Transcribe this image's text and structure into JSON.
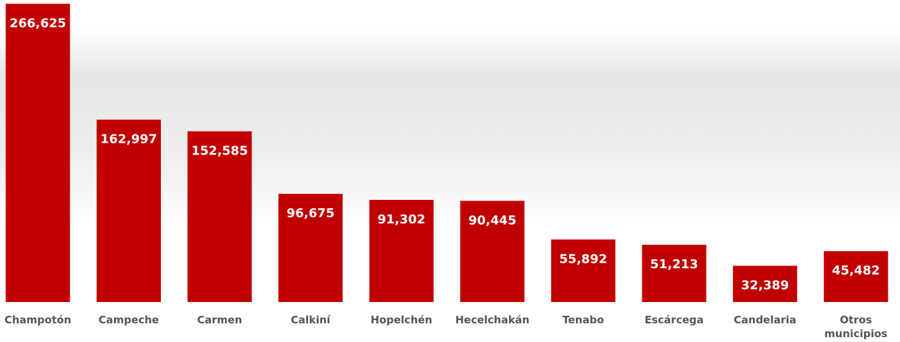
{
  "chart_data": {
    "type": "bar",
    "categories": [
      "Champotón",
      "Campeche",
      "Carmen",
      "Calkiní",
      "Hopelchén",
      "Hecelchakán",
      "Tenabo",
      "Escárcega",
      "Candelaria",
      "Otros municipios"
    ],
    "values": [
      266625,
      162997,
      152585,
      96675,
      91302,
      90445,
      55892,
      51213,
      32389,
      45482
    ],
    "value_labels": [
      "266,625",
      "162,997",
      "152,585",
      "96,675",
      "91,302",
      "90,445",
      "55,892",
      "51,213",
      "32,389",
      "45,482"
    ],
    "color": "#c00000",
    "ylim": [
      0,
      270000
    ]
  }
}
